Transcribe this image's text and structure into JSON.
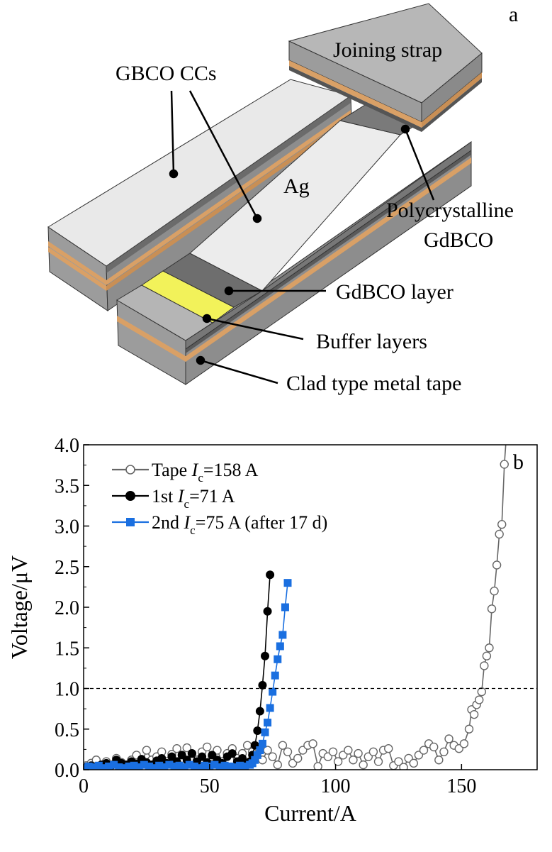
{
  "panel_a": {
    "panel_letter": "a",
    "labels": {
      "joining_strap": "Joining strap",
      "gbco_ccs": "GBCO CCs",
      "ag": "Ag",
      "polycrystalline": "Polycrystalline",
      "gdbco": "GdBCO",
      "gdbco_layer": "GdBCO layer",
      "buffer_layers": "Buffer layers",
      "clad_tape": "Clad type metal tape"
    },
    "colors": {
      "silver_top": "#e8e8e8",
      "silver_side": "#9c9c9c",
      "gdbco_dark": "#6e6e6e",
      "buffer_yellow": "#f2f25a",
      "copper": "#d9a066",
      "strap_top": "#b7b7b7"
    }
  },
  "chart_data": {
    "type": "scatter",
    "panel_letter": "b",
    "xlabel": "Current/A",
    "ylabel": "Voltage/μV",
    "xlim": [
      0,
      180
    ],
    "ylim": [
      0,
      4.0
    ],
    "x_ticks": [
      "0",
      "50",
      "100",
      "150"
    ],
    "x_tick_values": [
      0,
      50,
      100,
      150
    ],
    "y_ticks": [
      "0.0",
      "0.5",
      "1.0",
      "1.5",
      "2.0",
      "2.5",
      "3.0",
      "3.5",
      "4.0"
    ],
    "y_tick_values": [
      0,
      0.5,
      1.0,
      1.5,
      2.0,
      2.5,
      3.0,
      3.5,
      4.0
    ],
    "reference_line": {
      "y": 1.0,
      "style": "dashed"
    },
    "legend_position": "top-left",
    "series": [
      {
        "name": "Tape",
        "legend": {
          "prefix": "Tape ",
          "ic_label": "=158 A"
        },
        "color": "#666666",
        "marker": "open-circle",
        "points": [
          [
            1,
            0.05
          ],
          [
            3,
            0.08
          ],
          [
            5,
            0.12
          ],
          [
            7,
            0.05
          ],
          [
            9,
            0.1
          ],
          [
            11,
            0.06
          ],
          [
            13,
            0.14
          ],
          [
            15,
            0.09
          ],
          [
            17,
            0.05
          ],
          [
            19,
            0.12
          ],
          [
            21,
            0.18
          ],
          [
            23,
            0.08
          ],
          [
            25,
            0.24
          ],
          [
            27,
            0.12
          ],
          [
            29,
            0.16
          ],
          [
            31,
            0.22
          ],
          [
            33,
            0.1
          ],
          [
            35,
            0.19
          ],
          [
            37,
            0.26
          ],
          [
            39,
            0.14
          ],
          [
            41,
            0.27
          ],
          [
            43,
            0.2
          ],
          [
            45,
            0.12
          ],
          [
            47,
            0.22
          ],
          [
            49,
            0.28
          ],
          [
            51,
            0.16
          ],
          [
            53,
            0.24
          ],
          [
            55,
            0.1
          ],
          [
            57,
            0.2
          ],
          [
            59,
            0.26
          ],
          [
            61,
            0.14
          ],
          [
            63,
            0.2
          ],
          [
            65,
            0.3
          ],
          [
            67,
            0.22
          ],
          [
            69,
            0.28
          ],
          [
            71,
            0.12
          ],
          [
            73,
            0.24
          ],
          [
            75,
            0.16
          ],
          [
            77,
            0.06
          ],
          [
            79,
            0.3
          ],
          [
            81,
            0.22
          ],
          [
            83,
            0.08
          ],
          [
            85,
            0.14
          ],
          [
            87,
            0.24
          ],
          [
            89,
            0.3
          ],
          [
            91,
            0.32
          ],
          [
            93,
            0.04
          ],
          [
            95,
            0.2
          ],
          [
            97,
            0.16
          ],
          [
            99,
            0.22
          ],
          [
            101,
            0.1
          ],
          [
            103,
            0.18
          ],
          [
            105,
            0.24
          ],
          [
            107,
            0.12
          ],
          [
            109,
            0.2
          ],
          [
            111,
            0.06
          ],
          [
            113,
            0.16
          ],
          [
            115,
            0.22
          ],
          [
            117,
            0.1
          ],
          [
            119,
            0.24
          ],
          [
            121,
            0.26
          ],
          [
            123,
            0.05
          ],
          [
            125,
            0.1
          ],
          [
            127,
            0.03
          ],
          [
            129,
            0.14
          ],
          [
            131,
            0.08
          ],
          [
            133,
            0.18
          ],
          [
            135,
            0.24
          ],
          [
            137,
            0.32
          ],
          [
            139,
            0.28
          ],
          [
            141,
            0.12
          ],
          [
            143,
            0.22
          ],
          [
            145,
            0.38
          ],
          [
            147,
            0.3
          ],
          [
            149,
            0.26
          ],
          [
            151,
            0.32
          ],
          [
            153,
            0.5
          ],
          [
            154,
            0.74
          ],
          [
            155,
            0.68
          ],
          [
            156,
            0.8
          ],
          [
            157,
            0.86
          ],
          [
            158,
            0.96
          ],
          [
            159,
            1.28
          ],
          [
            160,
            1.4
          ],
          [
            161,
            1.5
          ],
          [
            162,
            1.98
          ],
          [
            163,
            2.2
          ],
          [
            164,
            2.52
          ],
          [
            165,
            2.9
          ],
          [
            166,
            3.02
          ],
          [
            167,
            3.76
          ],
          [
            168,
            4.2
          ]
        ]
      },
      {
        "name": "1st",
        "legend": {
          "prefix": "1st ",
          "ic_label": "=71 A"
        },
        "color": "#000000",
        "marker": "filled-circle",
        "points": [
          [
            1,
            0.03
          ],
          [
            3,
            0.05
          ],
          [
            5,
            0.04
          ],
          [
            7,
            0.06
          ],
          [
            9,
            0.08
          ],
          [
            11,
            0.05
          ],
          [
            13,
            0.12
          ],
          [
            15,
            0.08
          ],
          [
            17,
            0.06
          ],
          [
            19,
            0.1
          ],
          [
            21,
            0.07
          ],
          [
            23,
            0.13
          ],
          [
            25,
            0.09
          ],
          [
            27,
            0.06
          ],
          [
            29,
            0.11
          ],
          [
            31,
            0.14
          ],
          [
            33,
            0.08
          ],
          [
            35,
            0.16
          ],
          [
            37,
            0.1
          ],
          [
            39,
            0.18
          ],
          [
            41,
            0.12
          ],
          [
            43,
            0.2
          ],
          [
            45,
            0.1
          ],
          [
            47,
            0.16
          ],
          [
            49,
            0.09
          ],
          [
            51,
            0.18
          ],
          [
            53,
            0.12
          ],
          [
            55,
            0.08
          ],
          [
            57,
            0.16
          ],
          [
            59,
            0.2
          ],
          [
            61,
            0.1
          ],
          [
            63,
            0.14
          ],
          [
            65,
            0.06
          ],
          [
            66,
            0.1
          ],
          [
            67,
            0.18
          ],
          [
            68,
            0.3
          ],
          [
            69,
            0.48
          ],
          [
            70,
            0.72
          ],
          [
            71,
            1.04
          ],
          [
            72,
            1.4
          ],
          [
            73,
            1.95
          ],
          [
            74,
            2.4
          ]
        ]
      },
      {
        "name": "2nd",
        "legend": {
          "prefix": "2nd ",
          "ic_label": "=75 A (after 17 d)"
        },
        "color": "#1a6fe0",
        "marker": "filled-square",
        "points": [
          [
            0,
            0.02
          ],
          [
            2,
            0.04
          ],
          [
            4,
            0.03
          ],
          [
            6,
            0.05
          ],
          [
            8,
            0.02
          ],
          [
            10,
            0.04
          ],
          [
            12,
            0.06
          ],
          [
            14,
            0.03
          ],
          [
            16,
            0.02
          ],
          [
            18,
            0.04
          ],
          [
            20,
            0.05
          ],
          [
            22,
            0.03
          ],
          [
            24,
            0.06
          ],
          [
            26,
            0.04
          ],
          [
            28,
            0.02
          ],
          [
            30,
            0.05
          ],
          [
            32,
            0.03
          ],
          [
            34,
            0.06
          ],
          [
            36,
            0.04
          ],
          [
            38,
            0.05
          ],
          [
            40,
            0.03
          ],
          [
            42,
            0.06
          ],
          [
            44,
            0.04
          ],
          [
            46,
            0.02
          ],
          [
            48,
            0.05
          ],
          [
            50,
            0.04
          ],
          [
            52,
            0.06
          ],
          [
            54,
            0.03
          ],
          [
            56,
            0.05
          ],
          [
            58,
            0.04
          ],
          [
            60,
            0.03
          ],
          [
            62,
            0.05
          ],
          [
            64,
            0.04
          ],
          [
            66,
            0.06
          ],
          [
            67,
            0.08
          ],
          [
            68,
            0.12
          ],
          [
            69,
            0.18
          ],
          [
            70,
            0.24
          ],
          [
            71,
            0.32
          ],
          [
            72,
            0.46
          ],
          [
            73,
            0.58
          ],
          [
            74,
            0.76
          ],
          [
            75,
            0.96
          ],
          [
            76,
            1.16
          ],
          [
            77,
            1.36
          ],
          [
            78,
            1.52
          ],
          [
            79,
            1.66
          ],
          [
            80,
            2.0
          ],
          [
            81,
            2.3
          ]
        ]
      }
    ]
  }
}
